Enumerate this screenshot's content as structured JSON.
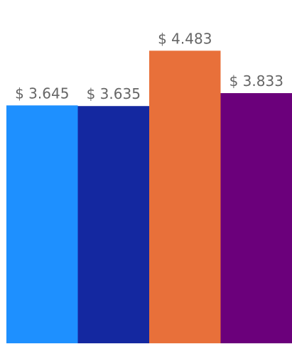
{
  "chart_data": {
    "type": "bar",
    "categories": [
      "",
      "",
      "",
      ""
    ],
    "values": [
      3.645,
      3.635,
      4.483,
      3.833
    ],
    "labels": [
      "$ 3.645",
      "$ 3.635",
      "$ 4.483",
      "$ 3.833"
    ],
    "colors": [
      "#1E90FF",
      "#1428A0",
      "#E8703A",
      "#6B007B"
    ],
    "title": "",
    "xlabel": "",
    "ylabel": "",
    "ylim": [
      0,
      5.26
    ],
    "grid": false,
    "legend": "none"
  }
}
